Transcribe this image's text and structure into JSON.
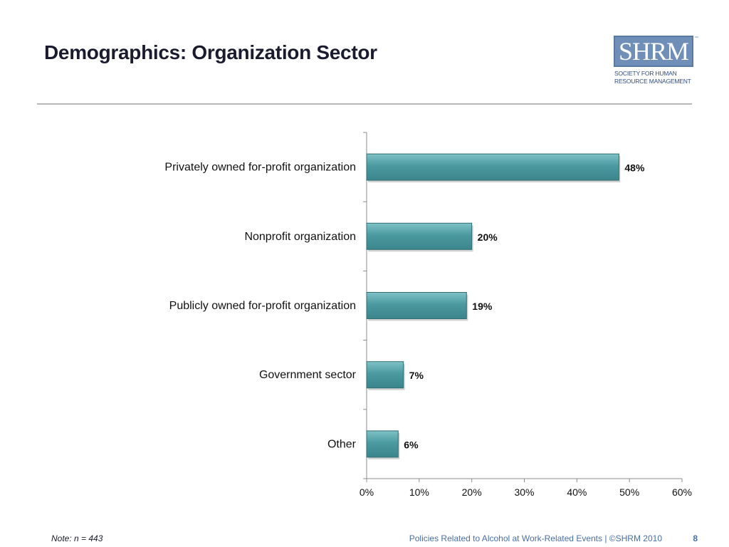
{
  "slide": {
    "title": "Demographics: Organization Sector",
    "note": "Note: n = 443",
    "source": "Policies Related to Alcohol at Work-Related Events | ©SHRM 2010",
    "page_number": "8"
  },
  "logo": {
    "mark": "SHRM",
    "trademark": "™",
    "line1": "SOCIETY FOR HUMAN",
    "line2": "RESOURCE MANAGEMENT"
  },
  "colors": {
    "bar_fill": "#4a9aa0",
    "bar_edge": "#2f6f74",
    "axis": "#8c8c8c",
    "text": "#111111"
  },
  "chart_data": {
    "type": "bar",
    "orientation": "horizontal",
    "categories": [
      "Privately owned for-profit organization",
      "Nonprofit organization",
      "Publicly owned for-profit organization",
      "Government sector",
      "Other"
    ],
    "values": [
      48,
      20,
      19,
      7,
      6
    ],
    "data_labels": [
      "48%",
      "20%",
      "19%",
      "7%",
      "6%"
    ],
    "xlim": [
      0,
      60
    ],
    "x_ticks": [
      0,
      10,
      20,
      30,
      40,
      50,
      60
    ],
    "x_tick_labels": [
      "0%",
      "10%",
      "20%",
      "30%",
      "40%",
      "50%",
      "60%"
    ],
    "grid": false,
    "legend": "none"
  }
}
